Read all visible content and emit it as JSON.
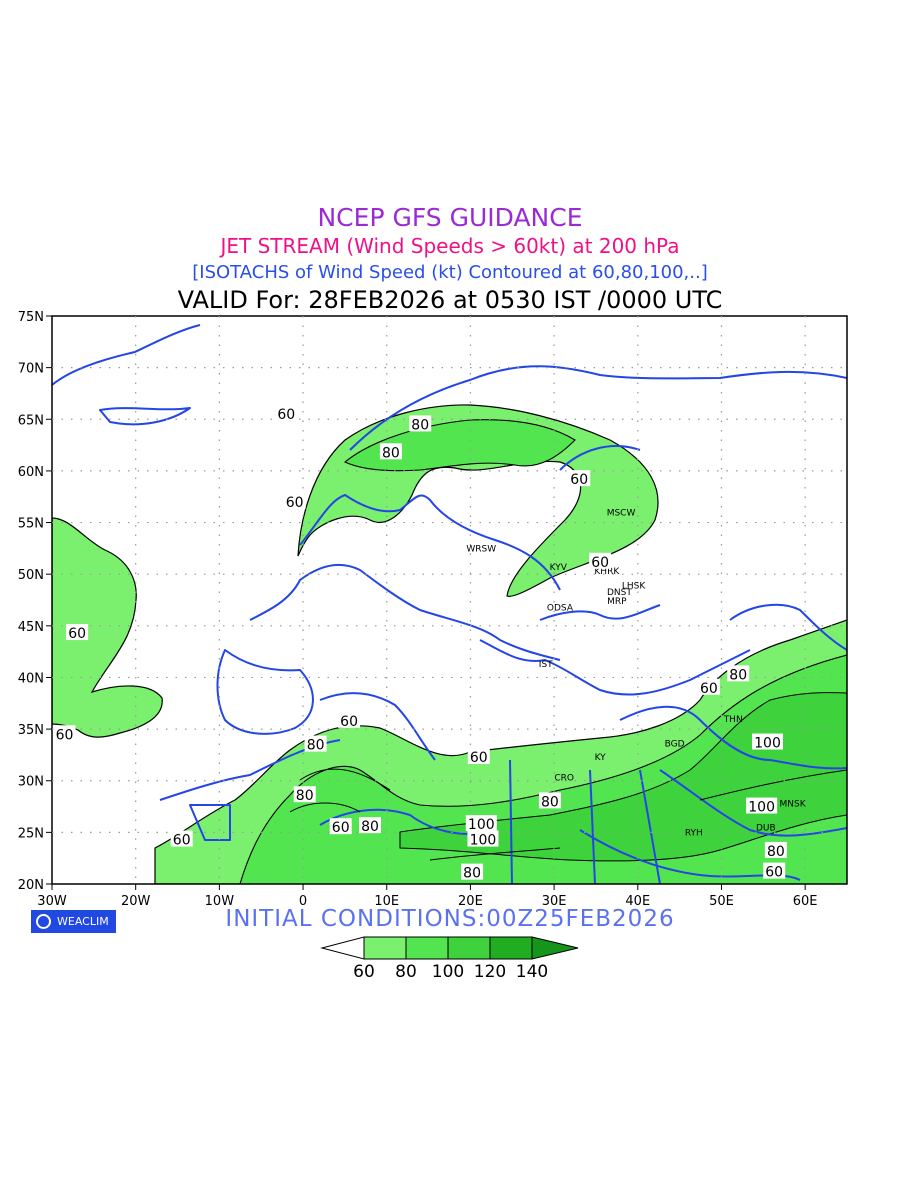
{
  "header": {
    "title": "NCEP GFS GUIDANCE",
    "subtitle": "JET STREAM (Wind Speeds > 60kt) at 200 hPa",
    "description": "[ISOTACHS of Wind Speed (kt) Contoured at 60,80,100,..]",
    "valid": "VALID For: 28FEB2026 at 0530 IST /0000 UTC"
  },
  "map": {
    "lon_range": [
      -30,
      65
    ],
    "lat_range": [
      20,
      75
    ],
    "lat_labels": [
      "75N",
      "70N",
      "65N",
      "60N",
      "55N",
      "50N",
      "45N",
      "40N",
      "35N",
      "30N",
      "25N",
      "20N"
    ],
    "lon_labels": [
      "30W",
      "20W",
      "10W",
      "0",
      "10E",
      "20E",
      "30E",
      "40E",
      "50E",
      "60E"
    ],
    "contour_labels": [
      {
        "text": "60",
        "lon": -2,
        "lat": 65.5
      },
      {
        "text": "80",
        "lon": 14,
        "lat": 64.5
      },
      {
        "text": "80",
        "lon": 10.5,
        "lat": 61.8
      },
      {
        "text": "60",
        "lon": -1,
        "lat": 57
      },
      {
        "text": "60",
        "lon": 33,
        "lat": 59.2
      },
      {
        "text": "60",
        "lon": 35.5,
        "lat": 51.2
      },
      {
        "text": "60",
        "lon": -27,
        "lat": 44.3
      },
      {
        "text": "60",
        "lon": -28.5,
        "lat": 34.5
      },
      {
        "text": "60",
        "lon": 5.5,
        "lat": 35.8
      },
      {
        "text": "80",
        "lon": 1.5,
        "lat": 33.5
      },
      {
        "text": "80",
        "lon": 0.2,
        "lat": 28.6
      },
      {
        "text": "60",
        "lon": 4.5,
        "lat": 25.5
      },
      {
        "text": "80",
        "lon": 8,
        "lat": 25.6
      },
      {
        "text": "60",
        "lon": 21,
        "lat": 32.3
      },
      {
        "text": "80",
        "lon": 29.5,
        "lat": 28
      },
      {
        "text": "100",
        "lon": 21.3,
        "lat": 25.8
      },
      {
        "text": "100",
        "lon": 21.5,
        "lat": 24.3
      },
      {
        "text": "80",
        "lon": 20.2,
        "lat": 21.1
      },
      {
        "text": "60",
        "lon": -14.5,
        "lat": 24.3
      },
      {
        "text": "60",
        "lon": 48.5,
        "lat": 39
      },
      {
        "text": "80",
        "lon": 52,
        "lat": 40.3
      },
      {
        "text": "100",
        "lon": 55.5,
        "lat": 33.7
      },
      {
        "text": "100",
        "lon": 54.8,
        "lat": 27.5
      },
      {
        "text": "80",
        "lon": 56.5,
        "lat": 23.2
      },
      {
        "text": "60",
        "lon": 56.3,
        "lat": 21.2
      }
    ],
    "stations": [
      {
        "code": "MSCW",
        "lon": 38,
        "lat": 55.7
      },
      {
        "code": "WRSW",
        "lon": 21.3,
        "lat": 52.2
      },
      {
        "code": "KYV",
        "lon": 30.5,
        "lat": 50.4
      },
      {
        "code": "KHRK",
        "lon": 36.3,
        "lat": 50
      },
      {
        "code": "LHSK",
        "lon": 39.5,
        "lat": 48.6
      },
      {
        "code": "DNST",
        "lon": 37.8,
        "lat": 48
      },
      {
        "code": "MRP",
        "lon": 37.5,
        "lat": 47.1
      },
      {
        "code": "ODSA",
        "lon": 30.7,
        "lat": 46.5
      },
      {
        "code": "IST",
        "lon": 29,
        "lat": 41
      },
      {
        "code": "THN",
        "lon": 51.4,
        "lat": 35.7
      },
      {
        "code": "BGD",
        "lon": 44.4,
        "lat": 33.3
      },
      {
        "code": "KY",
        "lon": 35.5,
        "lat": 32
      },
      {
        "code": "CRO",
        "lon": 31.2,
        "lat": 30
      },
      {
        "code": "MNSK",
        "lon": 58.5,
        "lat": 27.5
      },
      {
        "code": "RYH",
        "lon": 46.7,
        "lat": 24.7
      },
      {
        "code": "DUB",
        "lon": 55.3,
        "lat": 25.2
      }
    ]
  },
  "footer": {
    "logo_text": "WEACLIM",
    "initial_conditions": "INITIAL  CONDITIONS:00Z25FEB2026"
  },
  "colorbar": {
    "labels": [
      "60",
      "80",
      "100",
      "120",
      "140"
    ],
    "colors": [
      "#ffffff",
      "#7bef6e",
      "#53e54f",
      "#3ed23d",
      "#22ac22",
      "#16951c"
    ]
  },
  "colors": {
    "land_border": "#2446e6",
    "contour": "#000000",
    "fill_60": "#7bef6e",
    "fill_80": "#53e54f",
    "fill_100": "#3ed23d"
  }
}
